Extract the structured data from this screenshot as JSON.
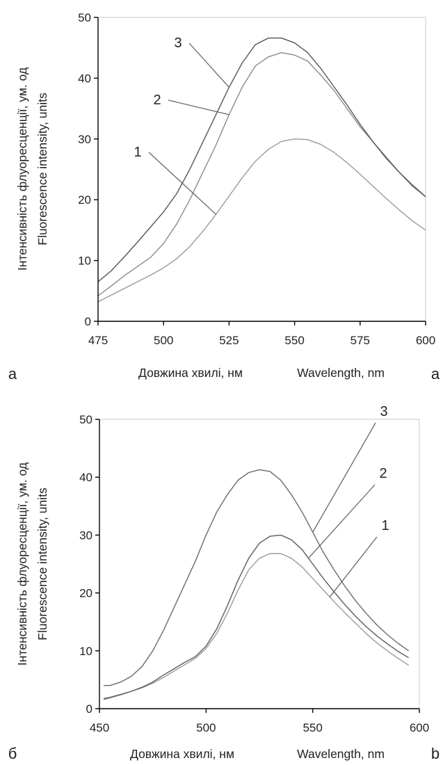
{
  "chart_data": [
    {
      "type": "line",
      "panel_label_left": "а",
      "panel_label_right": "a",
      "xlabel_ua": "Довжина хвилі, нм",
      "xlabel_en": "Wavelength, nm",
      "ylabel_ua": "Інтенсивність флуоресценції, ум. од",
      "ylabel_en": "Fluorescence intensity, units",
      "xlim": [
        475,
        600
      ],
      "ylim": [
        0,
        50
      ],
      "xticks": [
        475,
        500,
        525,
        550,
        575,
        600
      ],
      "yticks": [
        0,
        10,
        20,
        30,
        40,
        50
      ],
      "grid": false,
      "series": [
        {
          "label": "1",
          "color": "#9a9a9a",
          "x": [
            475,
            480,
            485,
            490,
            495,
            500,
            505,
            510,
            515,
            520,
            525,
            530,
            535,
            540,
            545,
            550,
            555,
            560,
            565,
            570,
            575,
            580,
            585,
            590,
            595,
            600
          ],
          "y": [
            3.2,
            4.3,
            5.4,
            6.5,
            7.6,
            8.8,
            10.3,
            12.3,
            14.8,
            17.6,
            20.6,
            23.6,
            26.3,
            28.3,
            29.6,
            30.0,
            29.9,
            29.1,
            27.8,
            26.1,
            24.2,
            22.2,
            20.2,
            18.3,
            16.5,
            15.0
          ]
        },
        {
          "label": "2",
          "color": "#8a8a8a",
          "x": [
            475,
            480,
            485,
            490,
            495,
            500,
            505,
            510,
            515,
            520,
            525,
            530,
            535,
            540,
            545,
            550,
            555,
            560,
            565,
            570,
            575,
            580,
            585,
            590,
            595,
            600
          ],
          "y": [
            4.2,
            5.8,
            7.5,
            9.0,
            10.5,
            12.8,
            16.0,
            20.0,
            24.5,
            29.0,
            34.0,
            38.5,
            42.0,
            43.5,
            44.2,
            43.8,
            42.8,
            40.5,
            38.0,
            35.0,
            32.0,
            29.5,
            27.0,
            24.5,
            22.2,
            20.5
          ]
        },
        {
          "label": "3",
          "color": "#555555",
          "x": [
            475,
            480,
            485,
            490,
            495,
            500,
            505,
            510,
            515,
            520,
            525,
            530,
            535,
            540,
            545,
            550,
            555,
            560,
            565,
            570,
            575,
            580,
            585,
            590,
            595,
            600
          ],
          "y": [
            6.5,
            8.3,
            10.6,
            13.0,
            15.5,
            18.0,
            21.0,
            25.0,
            29.5,
            34.0,
            38.5,
            42.5,
            45.5,
            46.6,
            46.6,
            45.8,
            44.2,
            41.6,
            38.6,
            35.6,
            32.4,
            29.5,
            26.8,
            24.5,
            22.4,
            20.5
          ]
        }
      ]
    },
    {
      "type": "line",
      "panel_label_left": "б",
      "panel_label_right": "b",
      "xlabel_ua": "Довжина хвилі, нм",
      "xlabel_en": "Wavelength, nm",
      "ylabel_ua": "Інтенсивність флуоресценції, ум. од",
      "ylabel_en": "Fluorescence intensity, units",
      "xlim": [
        450,
        600
      ],
      "ylim": [
        0,
        50
      ],
      "xticks": [
        450,
        500,
        550,
        600
      ],
      "yticks": [
        0,
        10,
        20,
        30,
        40,
        50
      ],
      "grid": false,
      "series": [
        {
          "label": "1",
          "color": "#9a9a9a",
          "x": [
            452,
            455,
            460,
            465,
            470,
            475,
            480,
            485,
            490,
            495,
            500,
            505,
            510,
            515,
            520,
            525,
            530,
            535,
            540,
            545,
            550,
            555,
            560,
            565,
            570,
            575,
            580,
            585,
            590,
            595
          ],
          "y": [
            1.8,
            2.0,
            2.5,
            3.0,
            3.6,
            4.4,
            5.4,
            6.5,
            7.6,
            8.7,
            10.4,
            13.0,
            16.5,
            20.5,
            24.0,
            26.0,
            26.8,
            26.8,
            26.0,
            24.5,
            22.5,
            20.5,
            18.5,
            16.6,
            14.8,
            13.0,
            11.4,
            10.0,
            8.7,
            7.5
          ]
        },
        {
          "label": "2",
          "color": "#5a5a5a",
          "x": [
            452,
            455,
            460,
            465,
            470,
            475,
            480,
            485,
            490,
            495,
            500,
            505,
            510,
            515,
            520,
            525,
            530,
            535,
            540,
            545,
            550,
            555,
            560,
            565,
            570,
            575,
            580,
            585,
            590,
            595
          ],
          "y": [
            1.6,
            1.9,
            2.4,
            3.0,
            3.7,
            4.6,
            5.8,
            6.9,
            8.0,
            9.0,
            10.8,
            13.8,
            17.8,
            22.2,
            26.0,
            28.6,
            29.8,
            30.0,
            29.2,
            27.5,
            25.0,
            22.5,
            20.2,
            18.0,
            16.0,
            14.2,
            12.6,
            11.2,
            9.9,
            8.8
          ]
        },
        {
          "label": "3",
          "color": "#6a6a6a",
          "x": [
            452,
            455,
            460,
            465,
            470,
            475,
            480,
            485,
            490,
            495,
            500,
            505,
            510,
            515,
            520,
            525,
            530,
            535,
            540,
            545,
            550,
            555,
            560,
            565,
            570,
            575,
            580,
            585,
            590,
            595
          ],
          "y": [
            4.0,
            4.0,
            4.6,
            5.6,
            7.3,
            10.0,
            13.5,
            17.5,
            21.5,
            25.5,
            30.0,
            34.0,
            37.0,
            39.5,
            40.8,
            41.3,
            41.0,
            39.5,
            37.0,
            34.0,
            30.5,
            27.0,
            24.0,
            21.2,
            18.7,
            16.5,
            14.5,
            12.8,
            11.3,
            10.0
          ]
        }
      ]
    }
  ]
}
